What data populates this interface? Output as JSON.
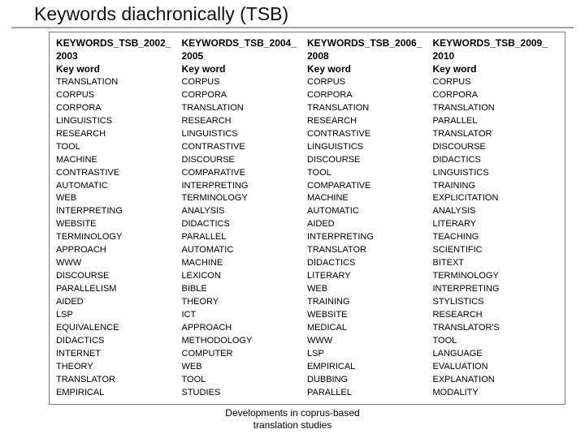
{
  "title": "Keywords diachronically (TSB)",
  "columns": [
    {
      "header_line1": "KEYWORDS_TSB_2002_",
      "header_line2": "2003",
      "keyword_label": "Key word",
      "items": [
        "TRANSLATION",
        "CORPUS",
        "CORPORA",
        "LINGUISTICS",
        "RESEARCH",
        "TOOL",
        "MACHINE",
        "CONTRASTIVE",
        "AUTOMATIC",
        "WEB",
        "INTERPRETING",
        "WEBSITE",
        "TERMINOLOGY",
        "APPROACH",
        "WWW",
        "DISCOURSE",
        "PARALLELISM",
        "AIDED",
        "LSP",
        "EQUIVALENCE",
        "DIDACTICS",
        "INTERNET",
        "THEORY",
        "TRANSLATOR",
        "EMPIRICAL"
      ]
    },
    {
      "header_line1": "KEYWORDS_TSB_2004_",
      "header_line2": "2005",
      "keyword_label": "Key word",
      "items": [
        "CORPUS",
        "CORPORA",
        "TRANSLATION",
        "RESEARCH",
        "LINGUISTICS",
        "CONTRASTIVE",
        "DISCOURSE",
        "COMPARATIVE",
        "INTERPRETING",
        "TERMINOLOGY",
        "ANALYSIS",
        "DIDACTICS",
        "PARALLEL",
        "AUTOMATIC",
        "MACHINE",
        "LEXICON",
        "BIBLE",
        "THEORY",
        "ICT",
        "APPROACH",
        "METHODOLOGY",
        "COMPUTER",
        "WEB",
        "TOOL",
        "STUDIES"
      ]
    },
    {
      "header_line1": "KEYWORDS_TSB_2006_",
      "header_line2": "2008",
      "keyword_label": "Key word",
      "items": [
        "CORPUS",
        "CORPORA",
        "TRANSLATION",
        "RESEARCH",
        "CONTRASTIVE",
        "LINGUISTICS",
        "DISCOURSE",
        "TOOL",
        "COMPARATIVE",
        "MACHINE",
        "AUTOMATIC",
        "AIDED",
        "INTERPRETING",
        "TRANSLATOR",
        "DIDACTICS",
        "LITERARY",
        "WEB",
        "TRAINING",
        "WEBSITE",
        "MEDICAL",
        "WWW",
        "LSP",
        "EMPIRICAL",
        "DUBBING",
        "PARALLEL"
      ]
    },
    {
      "header_line1": "KEYWORDS_TSB_2009_",
      "header_line2": "2010",
      "keyword_label": "Key word",
      "items": [
        "CORPUS",
        "CORPORA",
        "TRANSLATION",
        "PARALLEL",
        "TRANSLATOR",
        "DISCOURSE",
        "DIDACTICS",
        "LINGUISTICS",
        "TRAINING",
        "EXPLICITATION",
        "ANALYSIS",
        "LITERARY",
        "TEACHING",
        "SCIENTIFIC",
        "BITEXT",
        "TERMINOLOGY",
        "INTERPRETING",
        "STYLISTICS",
        "RESEARCH",
        "TRANSLATOR'S",
        "TOOL",
        "LANGUAGE",
        "EVALUATION",
        "EXPLANATION",
        "MODALITY"
      ]
    }
  ],
  "footer_line1": "Developments in coprus-based",
  "footer_line2": "translation studies"
}
